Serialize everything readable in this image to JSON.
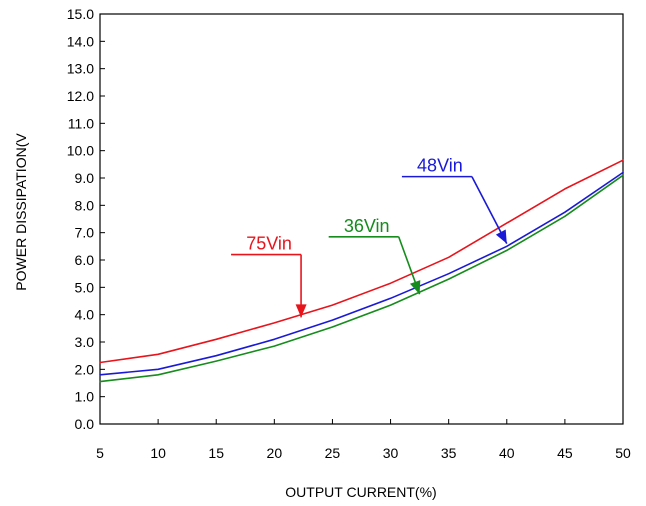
{
  "chart_data": {
    "type": "line",
    "title": "",
    "xlabel": "OUTPUT CURRENT(%)",
    "ylabel": "POWER DISSIPATION(V",
    "xlim": [
      5,
      50
    ],
    "ylim": [
      0,
      15
    ],
    "x_ticks": [
      "5",
      "10",
      "15",
      "20",
      "25",
      "30",
      "35",
      "40",
      "45",
      "50"
    ],
    "y_ticks": [
      "0.0",
      "1.0",
      "2.0",
      "3.0",
      "4.0",
      "5.0",
      "6.0",
      "7.0",
      "8.0",
      "9.0",
      "10.0",
      "11.0",
      "12.0",
      "13.0",
      "14.0",
      "15.0"
    ],
    "grid": false,
    "series": [
      {
        "name": "75Vin",
        "color": "#e8141c",
        "x": [
          5,
          10,
          15,
          20,
          25,
          30,
          35,
          40,
          45,
          50
        ],
        "y": [
          2.25,
          2.55,
          3.1,
          3.7,
          4.35,
          5.15,
          6.1,
          7.35,
          8.6,
          9.65
        ]
      },
      {
        "name": "48Vin",
        "color": "#1a1ad6",
        "x": [
          5,
          10,
          15,
          20,
          25,
          30,
          35,
          40,
          45,
          50
        ],
        "y": [
          1.8,
          2.0,
          2.5,
          3.1,
          3.8,
          4.6,
          5.5,
          6.5,
          7.75,
          9.2
        ]
      },
      {
        "name": "36Vin",
        "color": "#158c1c",
        "x": [
          5,
          10,
          15,
          20,
          25,
          30,
          35,
          40,
          45,
          50
        ],
        "y": [
          1.55,
          1.8,
          2.3,
          2.85,
          3.55,
          4.35,
          5.3,
          6.35,
          7.6,
          9.1
        ]
      }
    ],
    "annotations": [
      {
        "label": "75Vin",
        "series": 0,
        "from": [
          22.3,
          6.2
        ],
        "to": [
          22.3,
          3.9
        ]
      },
      {
        "label": "48Vin",
        "series": 1,
        "from": [
          37.0,
          9.05
        ],
        "to": [
          40.0,
          6.6
        ]
      },
      {
        "label": "36Vin",
        "series": 2,
        "from": [
          30.7,
          6.85
        ],
        "to": [
          32.5,
          4.75
        ]
      }
    ]
  }
}
